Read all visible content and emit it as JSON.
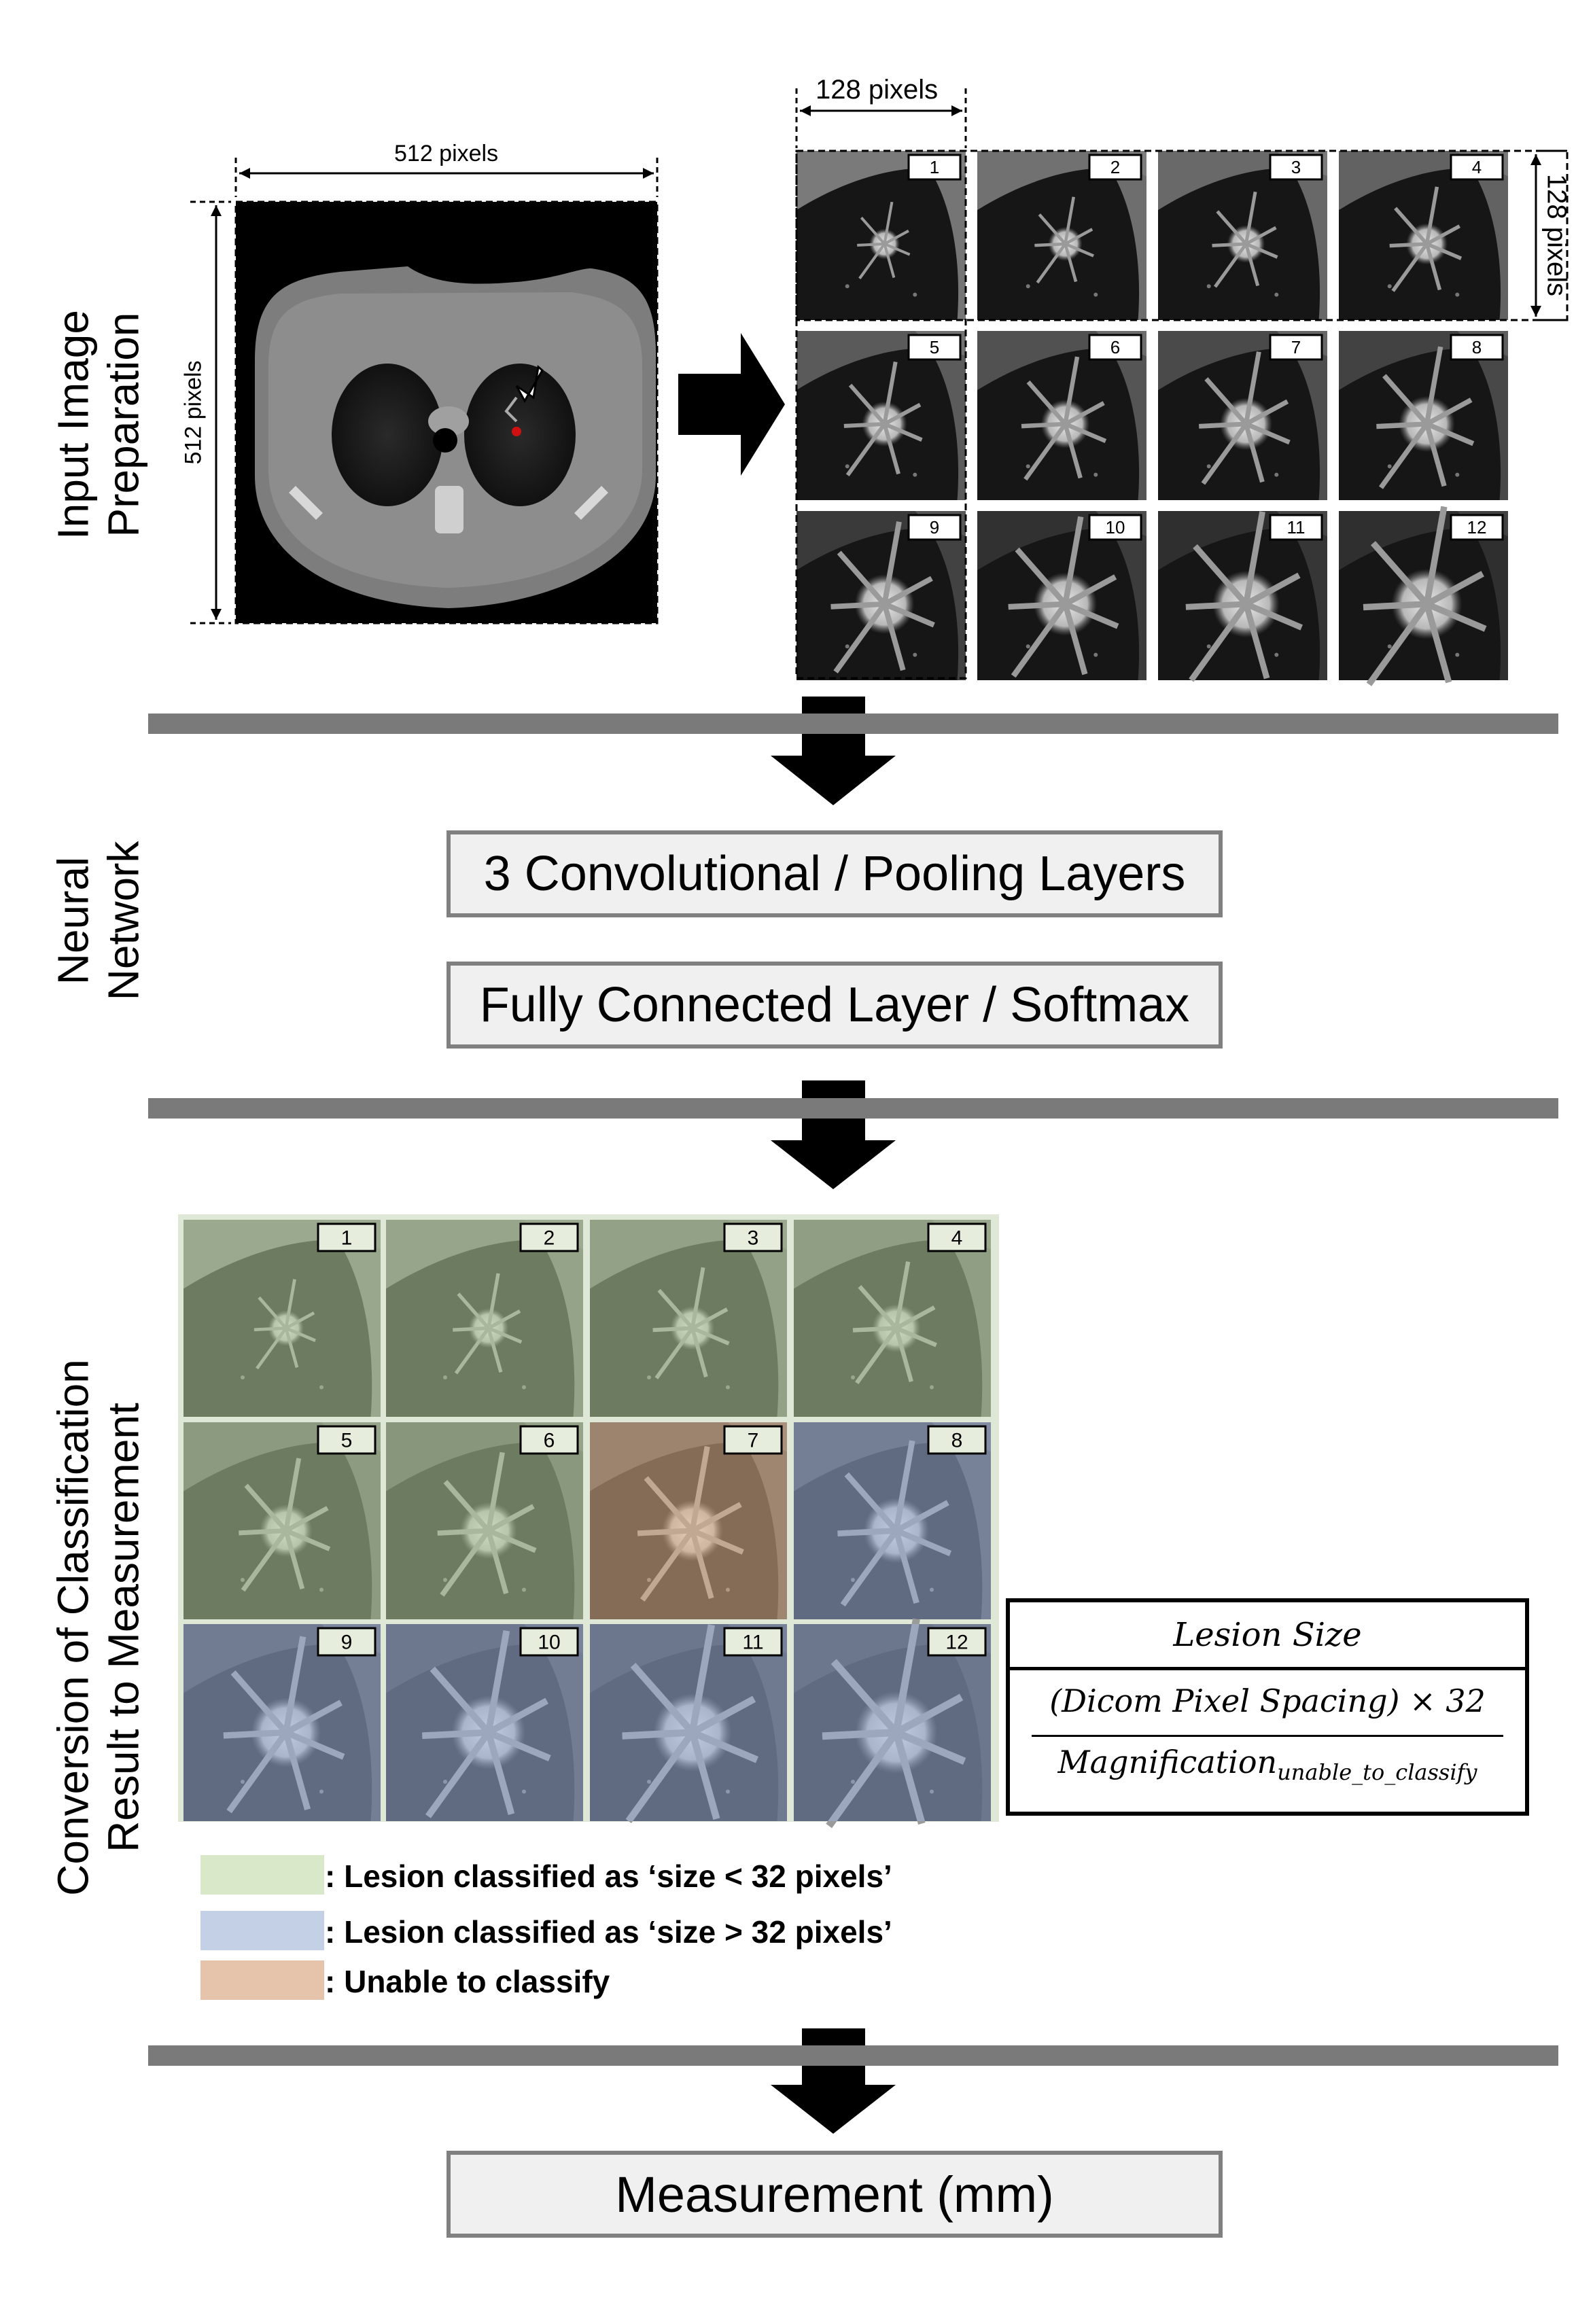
{
  "sections": {
    "input": [
      "Input Image",
      "Preparation"
    ],
    "network": [
      "Neural",
      "Network"
    ],
    "conversion": [
      "Conversion of Classification",
      "Result to Measurement"
    ]
  },
  "dimensions": {
    "ct_width": "512 pixels",
    "ct_height": "512 pixels",
    "patch_width": "128 pixels",
    "patch_height": "128 pixels"
  },
  "patch_labels": [
    "1",
    "2",
    "3",
    "4",
    "5",
    "6",
    "7",
    "8",
    "9",
    "10",
    "11",
    "12"
  ],
  "network_layers": {
    "conv": "3 Convolutional / Pooling Layers",
    "fc": "Fully Connected Layer / Softmax"
  },
  "classification": {
    "categories": [
      "small",
      "small",
      "small",
      "small",
      "small",
      "small",
      "unable",
      "large",
      "large",
      "large",
      "large",
      "large"
    ]
  },
  "formula": {
    "title": "Lesion  Size",
    "numerator": "(Dicom Pixel Spacing) × 32",
    "denominator_main": "Magnification",
    "denominator_sub": "unable_to_classify"
  },
  "legend": [
    {
      "label": ": Lesion classified as ‘size < 32 pixels’",
      "color": "#d9e8c8"
    },
    {
      "label": ": Lesion classified as ‘size > 32 pixels’",
      "color": "#c4d0e6"
    },
    {
      "label": ": Unable to classify",
      "color": "#e6c4ab"
    }
  ],
  "output": {
    "label": "Measurement (mm)"
  },
  "colors": {
    "small": "#b7cfa0",
    "large": "#9fb0d8",
    "unable": "#e2b48c",
    "bar": "#7a7a7a"
  }
}
